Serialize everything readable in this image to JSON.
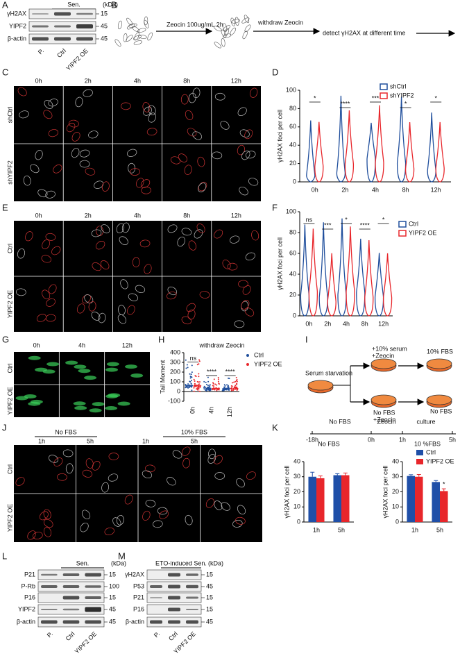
{
  "panel_labels": [
    "A",
    "B",
    "C",
    "D",
    "E",
    "F",
    "G",
    "H",
    "I",
    "J",
    "K",
    "L",
    "M"
  ],
  "blot_a": {
    "header": "Sen.",
    "kda_unit": "(kDa)",
    "rows": [
      {
        "label": "γH2AX",
        "kda": 15
      },
      {
        "label": "YIPF2",
        "kda": 45
      },
      {
        "label": "β-actin",
        "kda": 45
      }
    ],
    "lanes": [
      "P.",
      "Ctrl",
      "YIPF2 OE"
    ]
  },
  "scheme_b": {
    "step1": "Zeocin 100ug/mL 2h",
    "step2": "withdraw Zeocin",
    "step3": "detect γH2AX at different time"
  },
  "images_c": {
    "columns": [
      "0h",
      "2h",
      "4h",
      "8h",
      "12h"
    ],
    "rows": [
      "shCtrl",
      "shYIPF2"
    ]
  },
  "images_e": {
    "columns": [
      "0h",
      "2h",
      "4h",
      "8h",
      "12h"
    ],
    "rows": [
      "Ctrl",
      "YIPF2 OE"
    ]
  },
  "images_g": {
    "columns": [
      "0h",
      "4h",
      "12h"
    ],
    "rows": [
      "Ctrl",
      "YIPF2 OE"
    ]
  },
  "scheme_i": {
    "start": "Serum starvation",
    "branch_top": [
      "+10% serum",
      "+Zeocin"
    ],
    "end_top": "10% FBS",
    "branch_bottom": [
      "No FBS",
      "+Zeocin"
    ],
    "end_bottom": "No FBS",
    "phases": [
      "No FBS",
      "Zeocin",
      "culture"
    ],
    "times": [
      "-18h",
      "0h",
      "1h",
      "5h"
    ]
  },
  "images_j": {
    "groups": [
      "No FBS",
      "10% FBS"
    ],
    "columns": [
      "1h",
      "5h",
      "1h",
      "5h"
    ],
    "rows": [
      "Ctrl",
      "YIPF2 OE"
    ]
  },
  "blot_l": {
    "header": "Sen.",
    "kda_unit": "(kDa)",
    "rows": [
      {
        "label": "P21",
        "kda": 15
      },
      {
        "label": "P-Rb",
        "kda": 100
      },
      {
        "label": "P16",
        "kda": 15
      },
      {
        "label": "YIPF2",
        "kda": 45
      },
      {
        "label": "β-actin",
        "kda": 45
      }
    ],
    "lanes": [
      "P.",
      "Ctrl",
      "YIPF2 OE"
    ]
  },
  "blot_m": {
    "header": "ETO-induced Sen.",
    "kda_unit": "(kDa)",
    "rows": [
      {
        "label": "γH2AX",
        "kda": 15
      },
      {
        "label": "P53",
        "kda": 45
      },
      {
        "label": "P21",
        "kda": 15
      },
      {
        "label": "P16",
        "kda": 15
      },
      {
        "label": "β-actin",
        "kda": 45
      }
    ],
    "lanes": [
      "P.",
      "Ctrl",
      "YIPF2 OE"
    ]
  },
  "chart_data": [
    {
      "type": "violin",
      "ylabel": "γH2AX foci per cell",
      "categories": [
        "0h",
        "2h",
        "4h",
        "8h",
        "12h"
      ],
      "series": [
        {
          "name": "shCtrl",
          "color": "#1f4e9c"
        },
        {
          "name": "shYIPF2",
          "color": "#e8262b"
        }
      ],
      "ylim": [
        0,
        100
      ],
      "yticks": [
        0,
        20,
        40,
        60,
        80,
        100
      ],
      "annotations": [
        "*",
        "****",
        "***",
        "*",
        "*"
      ]
    },
    {
      "type": "violin",
      "ylabel": "γH2AX foci per cell",
      "categories": [
        "0h",
        "2h",
        "4h",
        "8h",
        "12h"
      ],
      "series": [
        {
          "name": "Ctrl",
          "color": "#1f4e9c"
        },
        {
          "name": "YIPF2 OE",
          "color": "#e8262b"
        }
      ],
      "ylim": [
        0,
        100
      ],
      "yticks": [
        0,
        20,
        40,
        60,
        80,
        100
      ],
      "annotations": [
        "ns",
        "***",
        "*",
        "****",
        "*"
      ]
    },
    {
      "type": "strip",
      "title": "withdraw Zeocin",
      "ylabel": "Tail Moment",
      "categories": [
        "0h",
        "4h",
        "12h"
      ],
      "series": [
        {
          "name": "Ctrl",
          "color": "#1f4e9c"
        },
        {
          "name": "YIPF2 OE",
          "color": "#e8262b"
        }
      ],
      "ylim": [
        -100,
        400
      ],
      "yticks": [
        -100,
        0,
        100,
        200,
        300,
        400
      ],
      "annotations": [
        "ns",
        "****",
        "****"
      ]
    },
    {
      "type": "bar",
      "title": "No FBS",
      "ylabel": "γH2AX foci per cell",
      "categories": [
        "1h",
        "5h"
      ],
      "series": [
        {
          "color": "#1f4fa8",
          "values": [
            30,
            31
          ],
          "errors": [
            3,
            1
          ]
        },
        {
          "color": "#e8262b",
          "values": [
            29,
            31
          ],
          "errors": [
            1.5,
            1.5
          ]
        }
      ],
      "ylim": [
        0,
        40
      ],
      "yticks": [
        0,
        10,
        20,
        30,
        40
      ]
    },
    {
      "type": "bar",
      "title": "10 %FBS",
      "ylabel": "γH2AX foci per cell",
      "categories": [
        "1h",
        "5h"
      ],
      "series": [
        {
          "name": "Ctrl",
          "color": "#1f4fa8",
          "values": [
            30.5,
            26.5
          ],
          "errors": [
            0.8,
            1
          ]
        },
        {
          "name": "YIPF2 OE",
          "color": "#e8262b",
          "values": [
            30,
            20.5
          ],
          "errors": [
            1.5,
            1.5
          ],
          "annotations": [
            null,
            "*"
          ]
        }
      ],
      "ylim": [
        0,
        40
      ],
      "yticks": [
        0,
        10,
        20,
        30,
        40
      ]
    }
  ]
}
